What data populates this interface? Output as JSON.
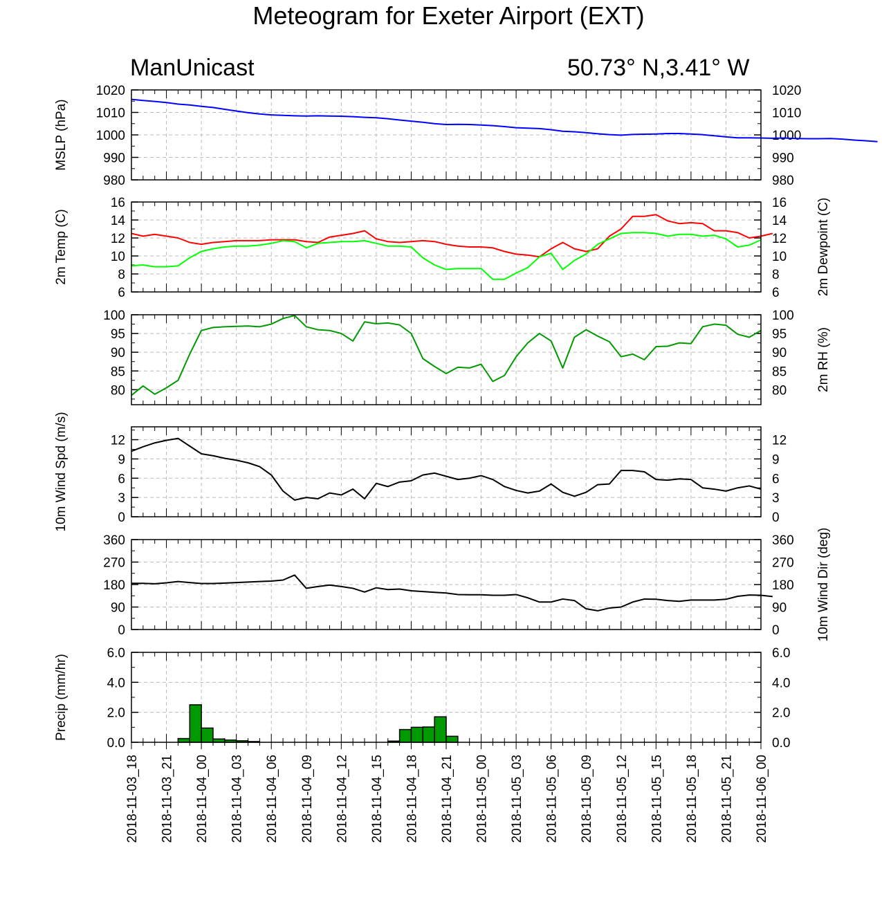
{
  "title": "Meteogram for Exeter Airport (EXT)",
  "subtitle_left": "ManUnicast",
  "subtitle_right": "50.73° N,3.41° W",
  "chart_data": {
    "type": "line",
    "x_tick_labels": [
      "2018-11-03_18",
      "2018-11-03_21",
      "2018-11-04_00",
      "2018-11-04_03",
      "2018-11-04_06",
      "2018-11-04_09",
      "2018-11-04_12",
      "2018-11-04_15",
      "2018-11-04_18",
      "2018-11-04_21",
      "2018-11-05_00",
      "2018-11-05_03",
      "2018-11-05_06",
      "2018-11-05_09",
      "2018-11-05_12",
      "2018-11-05_15",
      "2018-11-05_18",
      "2018-11-05_21",
      "2018-11-06_00"
    ],
    "x_step": "1 hour",
    "panels": [
      {
        "ylabel_left": "MSLP (hPa)",
        "ylabel_right": "",
        "ylim": [
          980,
          1020
        ],
        "ticks": [
          "980",
          "990",
          "1000",
          "1010",
          "1020"
        ],
        "tick_values": [
          980,
          990,
          1000,
          1010,
          1020
        ],
        "series": [
          {
            "color": "#0000ff",
            "values": [
              1015.8,
              1015.3,
              1014.9,
              1014.4,
              1013.7,
              1013.3,
              1012.7,
              1012.2,
              1011.4,
              1010.6,
              1009.9,
              1009.3,
              1008.9,
              1008.7,
              1008.5,
              1008.4,
              1008.5,
              1008.4,
              1008.3,
              1008.1,
              1007.8,
              1007.6,
              1007.2,
              1006.6,
              1006.1,
              1005.6,
              1005.0,
              1004.6,
              1004.7,
              1004.6,
              1004.4,
              1004.1,
              1003.7,
              1003.2,
              1003.0,
              1002.8,
              1002.3,
              1001.6,
              1001.4,
              1001.0,
              1000.5,
              1000.1,
              999.9,
              1000.2,
              1000.3,
              1000.4,
              1000.6,
              1000.6,
              1000.4,
              1000.1,
              999.6,
              999.1,
              998.7,
              998.7,
              998.6,
              998.5,
              998.6,
              998.4,
              998.3,
              998.3,
              998.4,
              998.1,
              997.7,
              997.4,
              997.0
            ]
          }
        ]
      },
      {
        "ylabel_left": "2m Temp (C)",
        "ylabel_right": "2m Dewpoint (C)",
        "ylim": [
          6,
          16
        ],
        "ticks": [
          "6",
          "8",
          "10",
          "12",
          "14",
          "16"
        ],
        "tick_values": [
          6,
          8,
          10,
          12,
          14,
          16
        ],
        "series": [
          {
            "color": "#ff0000",
            "values": [
              12.5,
              12.2,
              12.4,
              12.2,
              12.0,
              11.5,
              11.3,
              11.5,
              11.6,
              11.7,
              11.7,
              11.7,
              11.8,
              11.8,
              11.8,
              11.6,
              11.5,
              12.1,
              12.3,
              12.5,
              12.8,
              11.9,
              11.6,
              11.5,
              11.6,
              11.7,
              11.6,
              11.3,
              11.1,
              11.0,
              11.0,
              10.9,
              10.5,
              10.2,
              10.1,
              9.9,
              10.8,
              11.5,
              10.8,
              10.5,
              10.8,
              12.2,
              13.0,
              14.4,
              14.4,
              14.6,
              13.9,
              13.6,
              13.7,
              13.6,
              12.8,
              12.8,
              12.6,
              12.0,
              12.2,
              12.5
            ]
          },
          {
            "color": "#00ff00",
            "values": [
              8.9,
              9.0,
              8.8,
              8.8,
              8.9,
              9.8,
              10.5,
              10.8,
              11.0,
              11.1,
              11.1,
              11.2,
              11.4,
              11.7,
              11.6,
              10.9,
              11.4,
              11.5,
              11.6,
              11.6,
              11.7,
              11.4,
              11.1,
              11.1,
              11.0,
              9.8,
              9.0,
              8.5,
              8.6,
              8.6,
              8.6,
              7.4,
              7.4,
              8.1,
              8.7,
              9.9,
              10.3,
              8.5,
              9.5,
              10.2,
              11.3,
              11.9,
              12.5,
              12.6,
              12.6,
              12.5,
              12.2,
              12.4,
              12.4,
              12.2,
              12.3,
              11.9,
              11.0,
              11.2,
              11.8
            ]
          }
        ]
      },
      {
        "ylabel_left": "",
        "ylabel_right": "2m RH (%)",
        "ylim": [
          76,
          100
        ],
        "ticks": [
          "80",
          "85",
          "90",
          "95",
          "100"
        ],
        "tick_values": [
          80,
          85,
          90,
          95,
          100
        ],
        "series": [
          {
            "color": "#009900",
            "values": [
              78.5,
              81.0,
              78.8,
              80.5,
              82.5,
              89.5,
              95.8,
              96.6,
              96.8,
              96.9,
              97.0,
              96.8,
              97.5,
              99.0,
              99.8,
              96.8,
              96.0,
              95.8,
              95.0,
              93.0,
              98.1,
              97.6,
              97.8,
              97.3,
              95.0,
              88.3,
              86.2,
              84.3,
              86.0,
              85.8,
              86.8,
              82.2,
              83.8,
              88.8,
              92.5,
              95.0,
              93.0,
              85.8,
              94.0,
              96.0,
              94.3,
              92.8,
              88.8,
              89.5,
              88.0,
              91.5,
              91.6,
              92.5,
              92.3,
              96.8,
              97.5,
              97.2,
              94.8,
              94.0,
              95.8
            ]
          }
        ]
      },
      {
        "ylabel_left": "10m Wind Spd (m/s)",
        "ylabel_right": "",
        "ylim": [
          0,
          14
        ],
        "ticks": [
          "0",
          "3",
          "6",
          "9",
          "12"
        ],
        "tick_values": [
          0,
          3,
          6,
          9,
          12
        ],
        "series": [
          {
            "color": "#000000",
            "values": [
              10.2,
              10.9,
              11.5,
              11.9,
              12.2,
              11.0,
              9.8,
              9.5,
              9.1,
              8.8,
              8.4,
              7.8,
              6.5,
              4.0,
              2.6,
              3.0,
              2.8,
              3.7,
              3.4,
              4.3,
              2.8,
              5.2,
              4.7,
              5.4,
              5.6,
              6.5,
              6.8,
              6.3,
              5.8,
              6.0,
              6.4,
              5.8,
              4.7,
              4.1,
              3.7,
              4.0,
              5.1,
              3.8,
              3.2,
              3.8,
              5.0,
              5.1,
              7.2,
              7.2,
              7.0,
              5.8,
              5.7,
              5.9,
              5.8,
              4.5,
              4.3,
              4.0,
              4.5,
              4.8,
              4.3
            ]
          }
        ]
      },
      {
        "ylabel_left": "",
        "ylabel_right": "10m Wind Dir (deg)",
        "ylim": [
          0,
          360
        ],
        "ticks": [
          "0",
          "90",
          "180",
          "270",
          "360"
        ],
        "tick_values": [
          0,
          90,
          180,
          270,
          360
        ],
        "series": [
          {
            "color": "#000000",
            "values": [
              185,
              185,
              183,
              187,
              192,
              188,
              184,
              184,
              186,
              188,
              190,
              192,
              194,
              198,
              218,
              165,
              172,
              178,
              172,
              165,
              150,
              167,
              160,
              162,
              155,
              152,
              149,
              146,
              140,
              139,
              139,
              137,
              137,
              140,
              127,
              110,
              110,
              122,
              116,
              83,
              75,
              86,
              90,
              110,
              122,
              121,
              116,
              113,
              118,
              118,
              118,
              121,
              133,
              138,
              137,
              132
            ]
          }
        ]
      },
      {
        "ylabel_left": "Precip (mm/hr)",
        "ylabel_right": "",
        "ylim": [
          0,
          6
        ],
        "ticks": [
          "0.0",
          "2.0",
          "4.0",
          "6.0"
        ],
        "tick_values": [
          0,
          2,
          4,
          6
        ],
        "bars": {
          "color": "#009900",
          "start_hour": 4,
          "values": [
            0.25,
            2.5,
            0.95,
            0.22,
            0.15,
            0.1,
            0.05,
            0.0,
            0.0,
            0.0,
            0.0,
            0.0,
            0.0,
            0.0,
            0.0,
            0.0,
            0.0,
            0.0,
            0.08,
            0.85,
            1.0,
            1.02,
            1.7,
            0.4
          ]
        }
      }
    ],
    "grid": true
  }
}
